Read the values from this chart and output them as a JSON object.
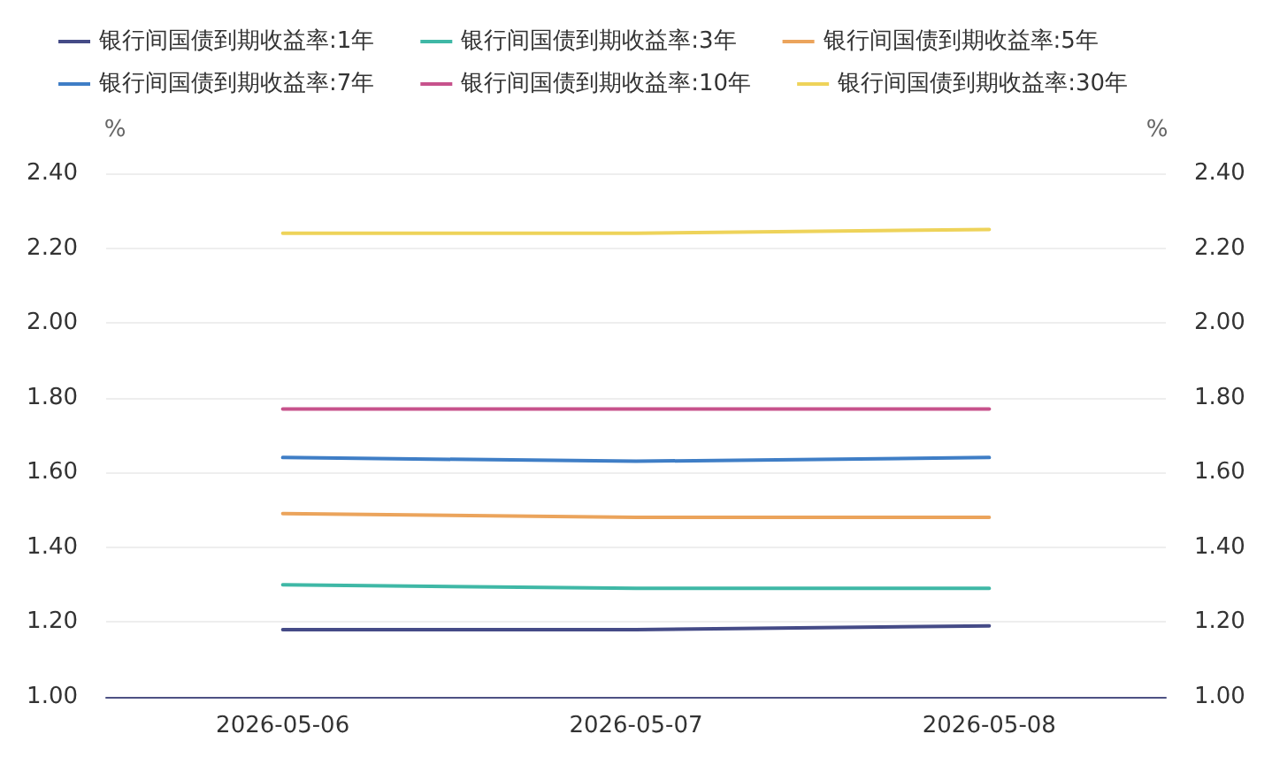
{
  "chart_data": {
    "type": "line",
    "categories": [
      "2026-05-06",
      "2026-05-07",
      "2026-05-08"
    ],
    "series": [
      {
        "name": "银行间国债到期收益率:1年",
        "color": "#454b87",
        "values": [
          1.18,
          1.18,
          1.19
        ]
      },
      {
        "name": "银行间国债到期收益率:3年",
        "color": "#3fb8a6",
        "values": [
          1.3,
          1.29,
          1.29
        ]
      },
      {
        "name": "银行间国债到期收益率:5年",
        "color": "#eba45c",
        "values": [
          1.49,
          1.48,
          1.48
        ]
      },
      {
        "name": "银行间国债到期收益率:7年",
        "color": "#3f7ec6",
        "values": [
          1.64,
          1.63,
          1.64
        ]
      },
      {
        "name": "银行间国债到期收益率:10年",
        "color": "#c7528c",
        "values": [
          1.77,
          1.77,
          1.77
        ]
      },
      {
        "name": "银行间国债到期收益率:30年",
        "color": "#eed35a",
        "values": [
          2.24,
          2.24,
          2.25
        ]
      }
    ],
    "ylabel": "%",
    "y2label": "%",
    "ylim": [
      1.0,
      2.4
    ],
    "yticks": [
      {
        "value": 1.0,
        "label": "1.00"
      },
      {
        "value": 1.2,
        "label": "1.20"
      },
      {
        "value": 1.4,
        "label": "1.40"
      },
      {
        "value": 1.6,
        "label": "1.60"
      },
      {
        "value": 1.8,
        "label": "1.80"
      },
      {
        "value": 2.0,
        "label": "2.00"
      },
      {
        "value": 2.2,
        "label": "2.20"
      },
      {
        "value": 2.4,
        "label": "2.40"
      }
    ],
    "y2lim": [
      1.0,
      2.4
    ],
    "y2ticks": [
      {
        "value": 1.0,
        "label": "1.00"
      },
      {
        "value": 1.2,
        "label": "1.20"
      },
      {
        "value": 1.4,
        "label": "1.40"
      },
      {
        "value": 1.6,
        "label": "1.60"
      },
      {
        "value": 1.8,
        "label": "1.80"
      },
      {
        "value": 2.0,
        "label": "2.00"
      },
      {
        "value": 2.2,
        "label": "2.20"
      },
      {
        "value": 2.4,
        "label": "2.40"
      }
    ],
    "grid": "y",
    "legend": "top",
    "marker": "none",
    "line_style": "solid"
  }
}
